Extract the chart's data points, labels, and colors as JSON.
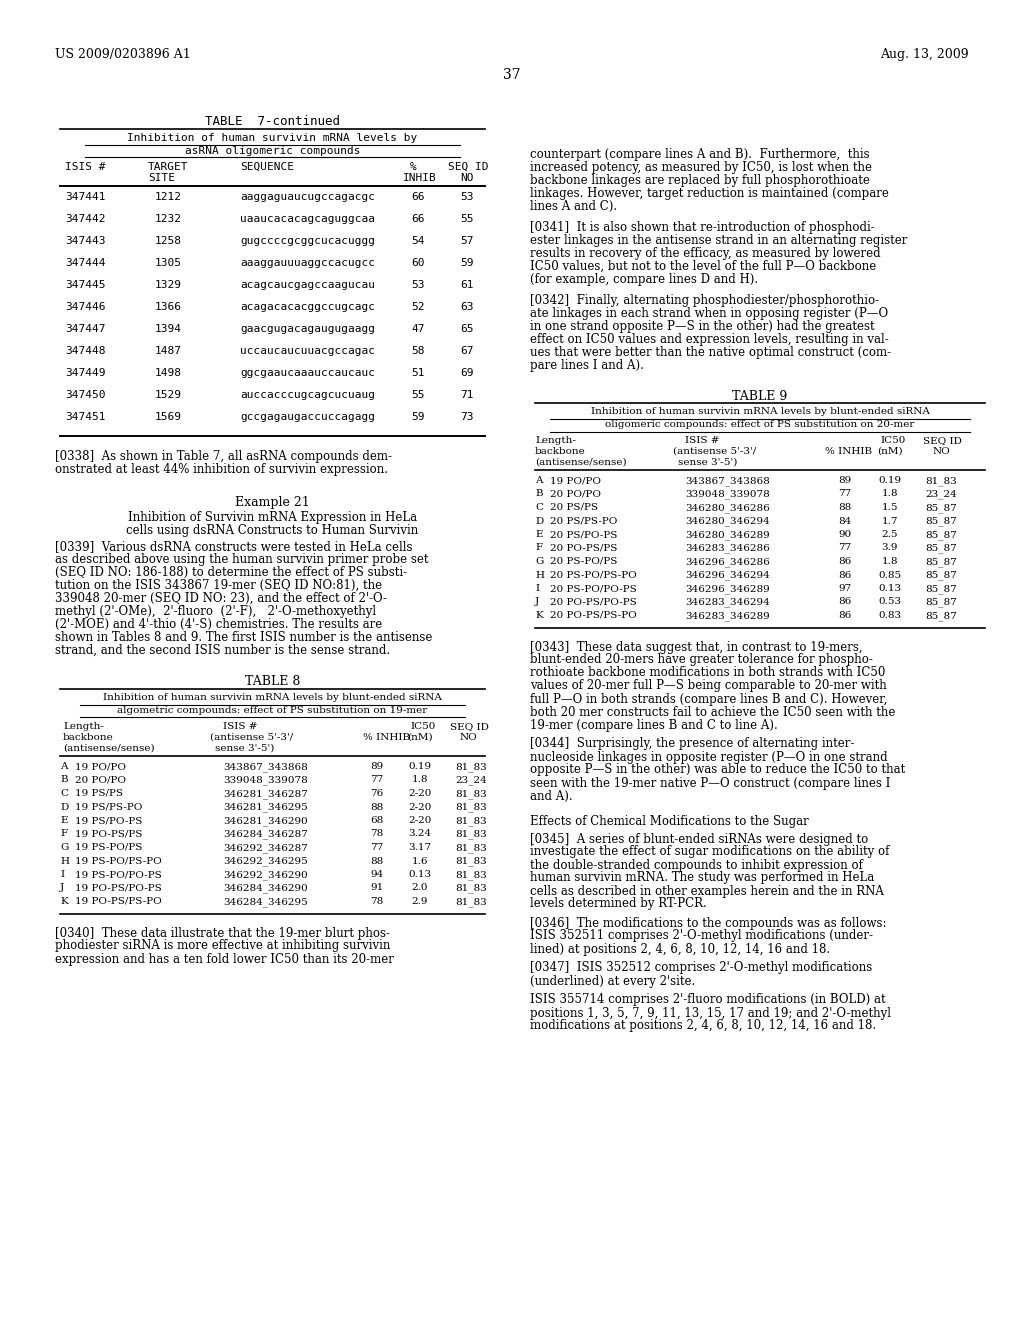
{
  "page_number": "37",
  "header_left": "US 2009/0203896 A1",
  "header_right": "Aug. 13, 2009",
  "table7_rows": [
    [
      "347441",
      "1212",
      "aaggaguaucugccagacgc",
      "66",
      "53"
    ],
    [
      "347442",
      "1232",
      "uaaucacacagcaguggcaa",
      "66",
      "55"
    ],
    [
      "347443",
      "1258",
      "gugccccgcggcucacuggg",
      "54",
      "57"
    ],
    [
      "347444",
      "1305",
      "aaaggauuuaggccacugcc",
      "60",
      "59"
    ],
    [
      "347445",
      "1329",
      "acagcaucgagccaagucau",
      "53",
      "61"
    ],
    [
      "347446",
      "1366",
      "acagacacacggccugcagc",
      "52",
      "63"
    ],
    [
      "347447",
      "1394",
      "gaacgugacagaugugaagg",
      "47",
      "65"
    ],
    [
      "347448",
      "1487",
      "uccaucaucuuacgccagac",
      "58",
      "67"
    ],
    [
      "347449",
      "1498",
      "ggcgaaucaaauccaucauc",
      "51",
      "69"
    ],
    [
      "347450",
      "1529",
      "auccacccugcagcucuaug",
      "55",
      "71"
    ],
    [
      "347451",
      "1569",
      "gccgagaugaccuccagagg",
      "59",
      "73"
    ]
  ],
  "table8_rows": [
    [
      "A",
      "19 PO/PO",
      "343867_343868",
      "89",
      "0.19",
      "81_83"
    ],
    [
      "B",
      "20 PO/PO",
      "339048_339078",
      "77",
      "1.8",
      "23_24"
    ],
    [
      "C",
      "19 PS/PS",
      "346281_346287",
      "76",
      "2-20",
      "81_83"
    ],
    [
      "D",
      "19 PS/PS-PO",
      "346281_346295",
      "88",
      "2-20",
      "81_83"
    ],
    [
      "E",
      "19 PS/PO-PS",
      "346281_346290",
      "68",
      "2-20",
      "81_83"
    ],
    [
      "F",
      "19 PO-PS/PS",
      "346284_346287",
      "78",
      "3.24",
      "81_83"
    ],
    [
      "G",
      "19 PS-PO/PS",
      "346292_346287",
      "77",
      "3.17",
      "81_83"
    ],
    [
      "H",
      "19 PS-PO/PS-PO",
      "346292_346295",
      "88",
      "1.6",
      "81_83"
    ],
    [
      "I",
      "19 PS-PO/PO-PS",
      "346292_346290",
      "94",
      "0.13",
      "81_83"
    ],
    [
      "J",
      "19 PO-PS/PO-PS",
      "346284_346290",
      "91",
      "2.0",
      "81_83"
    ],
    [
      "K",
      "19 PO-PS/PS-PO",
      "346284_346295",
      "78",
      "2.9",
      "81_83"
    ]
  ],
  "table9_rows": [
    [
      "A",
      "19 PO/PO",
      "343867_343868",
      "89",
      "0.19",
      "81_83"
    ],
    [
      "B",
      "20 PO/PO",
      "339048_339078",
      "77",
      "1.8",
      "23_24"
    ],
    [
      "C",
      "20 PS/PS",
      "346280_346286",
      "88",
      "1.5",
      "85_87"
    ],
    [
      "D",
      "20 PS/PS-PO",
      "346280_346294",
      "84",
      "1.7",
      "85_87"
    ],
    [
      "E",
      "20 PS/PO-PS",
      "346280_346289",
      "90",
      "2.5",
      "85_87"
    ],
    [
      "F",
      "20 PO-PS/PS",
      "346283_346286",
      "77",
      "3.9",
      "85_87"
    ],
    [
      "G",
      "20 PS-PO/PS",
      "346296_346286",
      "86",
      "1.8",
      "85_87"
    ],
    [
      "H",
      "20 PS-PO/PS-PO",
      "346296_346294",
      "86",
      "0.85",
      "85_87"
    ],
    [
      "I",
      "20 PS-PO/PO-PS",
      "346296_346289",
      "97",
      "0.13",
      "85_87"
    ],
    [
      "J",
      "20 PO-PS/PO-PS",
      "346283_346294",
      "86",
      "0.53",
      "85_87"
    ],
    [
      "K",
      "20 PO-PS/PS-PO",
      "346283_346289",
      "86",
      "0.83",
      "85_87"
    ]
  ]
}
